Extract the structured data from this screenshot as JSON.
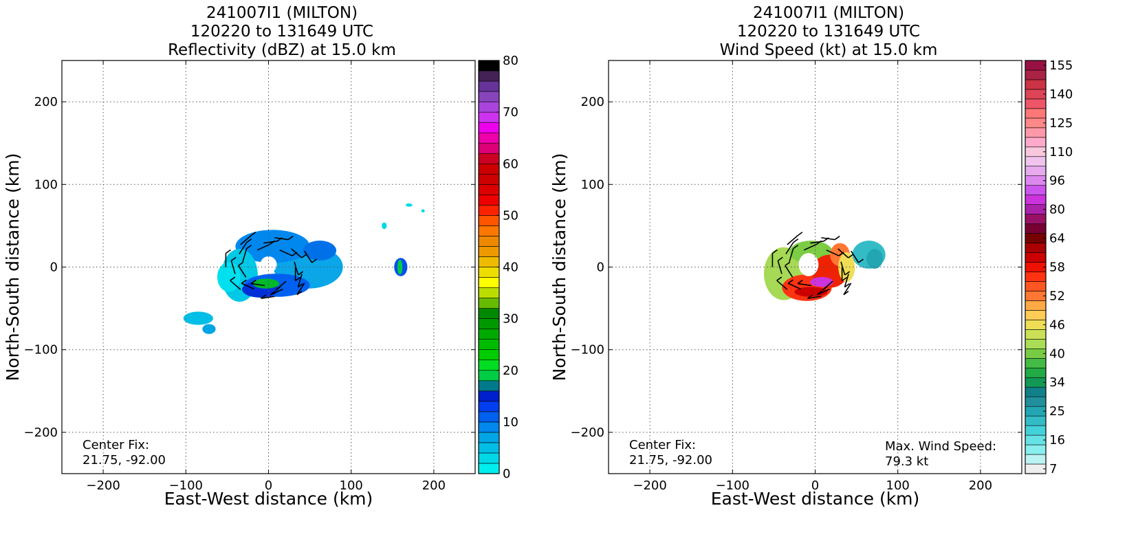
{
  "chart_data": [
    {
      "type": "heatmap",
      "title_lines": [
        "241007I1 (MILTON)",
        "120220 to 131649 UTC",
        "Reflectivity (dBZ) at 15.0 km"
      ],
      "xlabel": "East-West distance (km)",
      "ylabel": "North-South distance (km)",
      "xlim": [
        -250,
        250
      ],
      "ylim": [
        -250,
        250
      ],
      "xticks": [
        -200,
        -100,
        0,
        100,
        200
      ],
      "yticks": [
        -200,
        -100,
        0,
        100,
        200
      ],
      "xtick_labels": [
        "−200",
        "−100",
        "0",
        "100",
        "200"
      ],
      "ytick_labels": [
        "−200",
        "−100",
        "0",
        "100",
        "200"
      ],
      "grid": true,
      "colorbar": {
        "range": [
          0,
          80
        ],
        "ticks": [
          "0",
          "10",
          "20",
          "30",
          "40",
          "50",
          "60",
          "70",
          "80"
        ],
        "colors": [
          "#00eeee",
          "#00d8e8",
          "#00bee6",
          "#00a5e6",
          "#0088ee",
          "#0060f0",
          "#003ef0",
          "#0020cc",
          "#007a8a",
          "#00cc44",
          "#00dd22",
          "#00cc00",
          "#00bb00",
          "#00aa00",
          "#009900",
          "#008800",
          "#66bb00",
          "#bbdd00",
          "#ffff00",
          "#eedd00",
          "#eebb00",
          "#ee9900",
          "#ee8800",
          "#ff7700",
          "#ff5500",
          "#ff2200",
          "#ee0000",
          "#dd0000",
          "#cc0000",
          "#cc0000",
          "#cc0022",
          "#dd0077",
          "#ee00aa",
          "#ee00ee",
          "#cc33ee",
          "#aa44dd",
          "#8844bb",
          "#663399",
          "#442255",
          "#000000"
        ]
      },
      "center_fix_label": "Center Fix:",
      "center_fix_value": "21.75, -92.00",
      "blobs": [
        {
          "x": 48,
          "y": 0,
          "rx": 42,
          "ry": 26,
          "color": "#0aa6e8"
        },
        {
          "x": 5,
          "y": 25,
          "rx": 45,
          "ry": 20,
          "color": "#0088ee"
        },
        {
          "x": -35,
          "y": -10,
          "rx": 22,
          "ry": 32,
          "color": "#00c8e6"
        },
        {
          "x": -48,
          "y": -12,
          "rx": 14,
          "ry": 18,
          "color": "#00e0ee"
        },
        {
          "x": 10,
          "y": -22,
          "rx": 40,
          "ry": 14,
          "color": "#0060f0"
        },
        {
          "x": -10,
          "y": -27,
          "rx": 22,
          "ry": 10,
          "color": "#0030d8"
        },
        {
          "x": -3,
          "y": -20,
          "rx": 16,
          "ry": 6,
          "color": "#00b82a"
        },
        {
          "x": 62,
          "y": 20,
          "rx": 20,
          "ry": 12,
          "color": "#0070e8"
        },
        {
          "x": 0,
          "y": 3,
          "rx": 10,
          "ry": 10,
          "color": "#ffffff"
        },
        {
          "x": -85,
          "y": -62,
          "rx": 18,
          "ry": 8,
          "color": "#00bee6"
        },
        {
          "x": -72,
          "y": -75,
          "rx": 8,
          "ry": 6,
          "color": "#00a5e6"
        },
        {
          "x": 160,
          "y": 0,
          "rx": 8,
          "ry": 11,
          "color": "#0050ee"
        },
        {
          "x": 159,
          "y": 0,
          "rx": 3,
          "ry": 9,
          "color": "#00cc44"
        },
        {
          "x": 140,
          "y": 50,
          "rx": 3,
          "ry": 4,
          "color": "#00d8e8"
        },
        {
          "x": 170,
          "y": 75,
          "rx": 4,
          "ry": 2,
          "color": "#00d8e8"
        },
        {
          "x": 187,
          "y": 68,
          "rx": 2,
          "ry": 2,
          "color": "#00d8e8"
        }
      ]
    },
    {
      "type": "heatmap",
      "title_lines": [
        "241007I1 (MILTON)",
        "120220 to 131649 UTC",
        "Wind Speed (kt) at 15.0 km"
      ],
      "xlabel": "East-West distance (km)",
      "ylabel": "North-South distance (km)",
      "xlim": [
        -250,
        250
      ],
      "ylim": [
        -250,
        250
      ],
      "xticks": [
        -200,
        -100,
        0,
        100,
        200
      ],
      "yticks": [
        -200,
        -100,
        0,
        100,
        200
      ],
      "xtick_labels": [
        "−200",
        "−100",
        "0",
        "100",
        "200"
      ],
      "ytick_labels": [
        "−200",
        "−100",
        "0",
        "100",
        "200"
      ],
      "grid": true,
      "colorbar": {
        "ticks": [
          "7",
          "16",
          "25",
          "34",
          "40",
          "46",
          "52",
          "58",
          "64",
          "80",
          "96",
          "110",
          "125",
          "140",
          "155"
        ],
        "colors": [
          "#eeeeee",
          "#bbf2f2",
          "#88eeee",
          "#66e2e6",
          "#44d2da",
          "#33bcc6",
          "#22a6b2",
          "#22909c",
          "#118088",
          "#119955",
          "#22aa44",
          "#44bb44",
          "#77cc44",
          "#aadd55",
          "#cce055",
          "#eedd55",
          "#ffcc55",
          "#ffaa44",
          "#ff7733",
          "#ff5522",
          "#ff3311",
          "#ee1100",
          "#cc0000",
          "#aa0000",
          "#770000",
          "#770033",
          "#991166",
          "#aa22aa",
          "#cc33dd",
          "#cc55ee",
          "#dd88ee",
          "#e8aaee",
          "#f0c4ee",
          "#f8c8dd",
          "#ffaacc",
          "#ff99aa",
          "#ff8888",
          "#ff7777",
          "#ee5566",
          "#dd4455",
          "#cc3344",
          "#aa2244",
          "#991144"
        ]
      },
      "center_fix_label": "Center Fix:",
      "center_fix_value": "21.75, -92.00",
      "max_wind_label": "Max. Wind Speed:",
      "max_wind_value": "79.3 kt",
      "blobs": [
        {
          "x": -38,
          "y": -8,
          "rx": 24,
          "ry": 32,
          "color": "#a6d955"
        },
        {
          "x": -5,
          "y": 18,
          "rx": 26,
          "ry": 14,
          "color": "#7ccc44"
        },
        {
          "x": -10,
          "y": -25,
          "rx": 30,
          "ry": 16,
          "color": "#ff3311"
        },
        {
          "x": 18,
          "y": -5,
          "rx": 22,
          "ry": 20,
          "color": "#ee2200"
        },
        {
          "x": 30,
          "y": 15,
          "rx": 12,
          "ry": 14,
          "color": "#ff7733"
        },
        {
          "x": 38,
          "y": 0,
          "rx": 10,
          "ry": 18,
          "color": "#eedd55"
        },
        {
          "x": 65,
          "y": 15,
          "rx": 20,
          "ry": 17,
          "color": "#33bcc6"
        },
        {
          "x": 72,
          "y": 10,
          "rx": 10,
          "ry": 12,
          "color": "#22a6b2"
        },
        {
          "x": 8,
          "y": -18,
          "rx": 14,
          "ry": 6,
          "color": "#cc33dd"
        },
        {
          "x": -5,
          "y": -30,
          "rx": 20,
          "ry": 6,
          "color": "#cc0000"
        },
        {
          "x": -8,
          "y": 3,
          "rx": 12,
          "ry": 14,
          "color": "#ffffff"
        }
      ]
    }
  ]
}
